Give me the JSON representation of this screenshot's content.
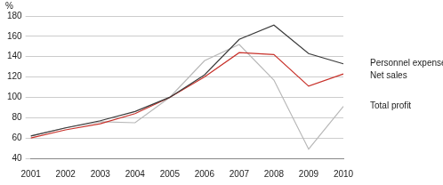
{
  "chart_data": {
    "type": "line",
    "y_label": "%",
    "categories": [
      "2001",
      "2002",
      "2003",
      "2004",
      "2005",
      "2006",
      "2007",
      "2008",
      "2009",
      "2010"
    ],
    "series": [
      {
        "name": "Personnel expenses",
        "color": "#3a3a3a",
        "values": [
          62,
          70,
          77,
          86,
          100,
          122,
          157,
          171,
          143,
          133
        ]
      },
      {
        "name": "Net sales",
        "color": "#c8312a",
        "values": [
          60,
          68,
          74,
          84,
          100,
          120,
          144,
          142,
          111,
          123
        ]
      },
      {
        "name": "Total profit",
        "color": "#b8b8b8",
        "values": [
          62,
          70,
          76,
          75,
          100,
          136,
          152,
          117,
          49,
          91
        ]
      }
    ],
    "ylim": [
      40,
      180
    ],
    "yticks": [
      40,
      60,
      80,
      100,
      120,
      140,
      160,
      180
    ],
    "grid": true
  }
}
